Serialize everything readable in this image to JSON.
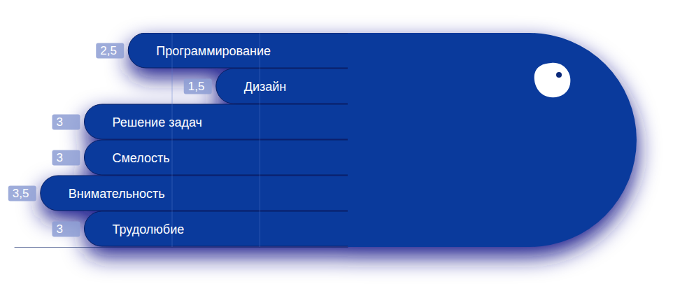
{
  "chart_data": {
    "type": "bar",
    "orientation": "horizontal",
    "categories": [
      "Программирование",
      "Дизайн",
      "Решение задач",
      "Смелость",
      "Внимательность",
      "Трудолюбие"
    ],
    "values": [
      2.5,
      1.5,
      3,
      3,
      3.5,
      3
    ],
    "value_labels": [
      "2,5",
      "1,5",
      "3",
      "3",
      "3,5",
      "3"
    ],
    "data_labels": true,
    "color": "#0a3a9c",
    "xlim": [
      0,
      3.8
    ],
    "xticks": [
      1,
      2
    ],
    "grid": true,
    "tick_labels": false
  }
}
